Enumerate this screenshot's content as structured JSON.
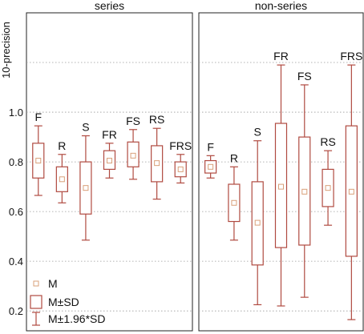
{
  "chart_data": [
    {
      "type": "box",
      "title": "series",
      "ylabel": "10-precision",
      "ylim": [
        0.12,
        1.4
      ],
      "yticks": [
        "0.2",
        "0.4",
        "0.6",
        "0.8",
        "1.0"
      ],
      "grid": true,
      "boxes": [
        {
          "label": "F",
          "mean": 0.805,
          "sd_low": 0.735,
          "sd_high": 0.875,
          "ci_low": 0.665,
          "ci_high": 0.945
        },
        {
          "label": "R",
          "mean": 0.73,
          "sd_low": 0.68,
          "sd_high": 0.78,
          "ci_low": 0.635,
          "ci_high": 0.83
        },
        {
          "label": "S",
          "mean": 0.695,
          "sd_low": 0.59,
          "sd_high": 0.8,
          "ci_low": 0.485,
          "ci_high": 0.905
        },
        {
          "label": "FR",
          "mean": 0.805,
          "sd_low": 0.77,
          "sd_high": 0.845,
          "ci_low": 0.735,
          "ci_high": 0.875
        },
        {
          "label": "FS",
          "mean": 0.825,
          "sd_low": 0.78,
          "sd_high": 0.88,
          "ci_low": 0.73,
          "ci_high": 0.93
        },
        {
          "label": "RS",
          "mean": 0.795,
          "sd_low": 0.72,
          "sd_high": 0.865,
          "ci_low": 0.65,
          "ci_high": 0.935
        },
        {
          "label": "FRS",
          "mean": 0.77,
          "sd_low": 0.74,
          "sd_high": 0.8,
          "ci_low": 0.715,
          "ci_high": 0.83
        }
      ]
    },
    {
      "type": "box",
      "title": "non-series",
      "ylim": [
        0.12,
        1.4
      ],
      "grid": true,
      "boxes": [
        {
          "label": "F",
          "mean": 0.78,
          "sd_low": 0.755,
          "sd_high": 0.805,
          "ci_low": 0.735,
          "ci_high": 0.825
        },
        {
          "label": "R",
          "mean": 0.635,
          "sd_low": 0.56,
          "sd_high": 0.71,
          "ci_low": 0.485,
          "ci_high": 0.78
        },
        {
          "label": "S",
          "mean": 0.555,
          "sd_low": 0.385,
          "sd_high": 0.72,
          "ci_low": 0.225,
          "ci_high": 0.885
        },
        {
          "label": "FR",
          "mean": 0.7,
          "sd_low": 0.455,
          "sd_high": 0.955,
          "ci_low": 0.22,
          "ci_high": 1.19
        },
        {
          "label": "FS",
          "mean": 0.68,
          "sd_low": 0.465,
          "sd_high": 0.9,
          "ci_low": 0.255,
          "ci_high": 1.11
        },
        {
          "label": "RS",
          "mean": 0.695,
          "sd_low": 0.62,
          "sd_high": 0.77,
          "ci_low": 0.545,
          "ci_high": 0.845
        },
        {
          "label": "FRS",
          "mean": 0.68,
          "sd_low": 0.42,
          "sd_high": 0.945,
          "ci_low": 0.165,
          "ci_high": 1.19
        }
      ]
    }
  ],
  "legend": {
    "items": [
      {
        "label": "M",
        "symbol": "mean-marker"
      },
      {
        "label": "M±SD",
        "symbol": "box"
      },
      {
        "label": "M±1.96*SD",
        "symbol": "whisker"
      }
    ],
    "placement": "bottom-left"
  },
  "colors": {
    "series": "#b04a40",
    "mean": "#d9a07a",
    "grid": "#9a9a9a",
    "axis": "#222222"
  }
}
